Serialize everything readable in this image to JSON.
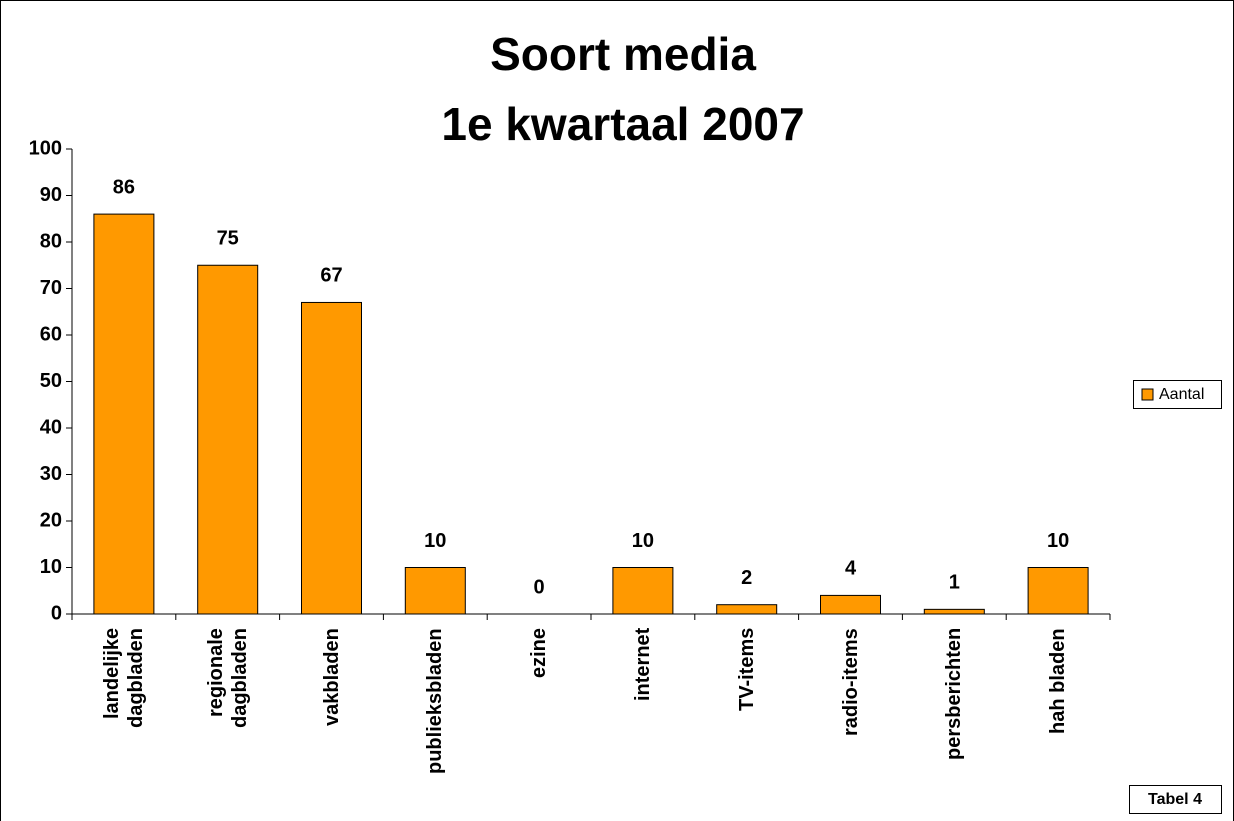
{
  "chart_data": {
    "type": "bar",
    "title": "Soort media",
    "subtitle": "1e kwartaal 2007",
    "categories": [
      "landelijke dagbladen",
      "regionale dagbladen",
      "vakbladen",
      "publieksbladen",
      "ezine",
      "internet",
      "TV-items",
      "radio-items",
      "persberichten",
      "hah bladen"
    ],
    "series": [
      {
        "name": "Aantal",
        "color": "#ff9900",
        "values": [
          86,
          75,
          67,
          10,
          0,
          10,
          2,
          4,
          1,
          10
        ]
      }
    ],
    "ylim": [
      0,
      100
    ],
    "yticks": [
      0,
      10,
      20,
      30,
      40,
      50,
      60,
      70,
      80,
      90,
      100
    ],
    "legend": "right",
    "annotation": "Tabel 4"
  }
}
